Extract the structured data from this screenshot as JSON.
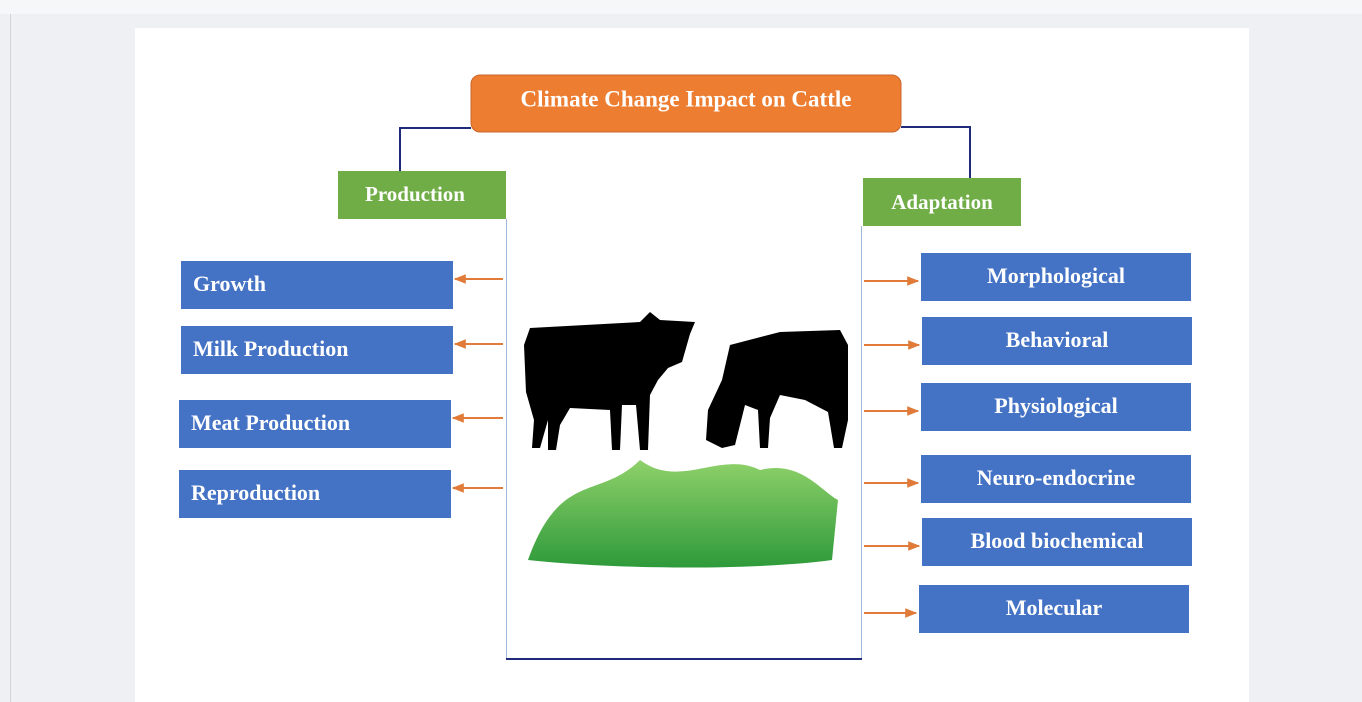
{
  "title": "Climate Change Impact on Cattle",
  "production": {
    "label": "Production",
    "items": [
      "Growth",
      "Milk Production",
      "Meat Production",
      "Reproduction"
    ]
  },
  "adaptation": {
    "label": "Adaptation",
    "items": [
      "Morphological",
      "Behavioral",
      "Physiological",
      "Neuro-endocrine",
      "Blood biochemical",
      "Molecular"
    ]
  }
}
